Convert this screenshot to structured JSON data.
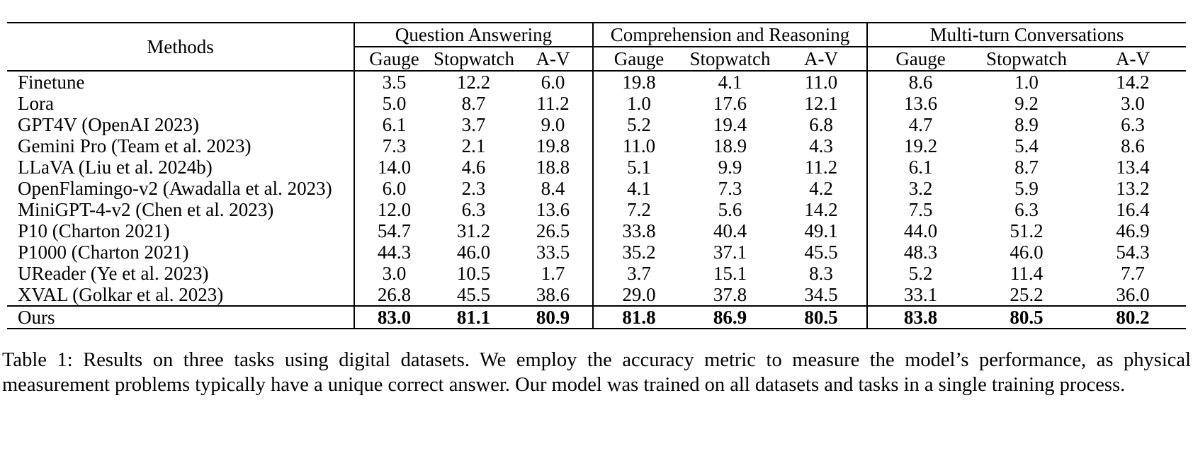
{
  "table": {
    "methods_header": "Methods",
    "groups": [
      {
        "label": "Question Answering"
      },
      {
        "label": "Comprehension and Reasoning"
      },
      {
        "label": "Multi-turn Conversations"
      }
    ],
    "subheaders": [
      "Gauge",
      "Stopwatch",
      "A-V"
    ],
    "rows": [
      {
        "method": "Finetune",
        "values": [
          "3.5",
          "12.2",
          "6.0",
          "19.8",
          "4.1",
          "11.0",
          "8.6",
          "1.0",
          "14.2"
        ],
        "bold_values": false
      },
      {
        "method": "Lora",
        "values": [
          "5.0",
          "8.7",
          "11.2",
          "1.0",
          "17.6",
          "12.1",
          "13.6",
          "9.2",
          "3.0"
        ],
        "bold_values": false
      },
      {
        "method": "GPT4V (OpenAI 2023)",
        "values": [
          "6.1",
          "3.7",
          "9.0",
          "5.2",
          "19.4",
          "6.8",
          "4.7",
          "8.9",
          "6.3"
        ],
        "bold_values": false
      },
      {
        "method": "Gemini Pro (Team et al. 2023)",
        "values": [
          "7.3",
          "2.1",
          "19.8",
          "11.0",
          "18.9",
          "4.3",
          "19.2",
          "5.4",
          "8.6"
        ],
        "bold_values": false
      },
      {
        "method": "LLaVA (Liu et al. 2024b)",
        "values": [
          "14.0",
          "4.6",
          "18.8",
          "5.1",
          "9.9",
          "11.2",
          "6.1",
          "8.7",
          "13.4"
        ],
        "bold_values": false
      },
      {
        "method": "OpenFlamingo-v2 (Awadalla et al. 2023)",
        "values": [
          "6.0",
          "2.3",
          "8.4",
          "4.1",
          "7.3",
          "4.2",
          "3.2",
          "5.9",
          "13.2"
        ],
        "bold_values": false
      },
      {
        "method": "MiniGPT-4-v2 (Chen et al. 2023)",
        "values": [
          "12.0",
          "6.3",
          "13.6",
          "7.2",
          "5.6",
          "14.2",
          "7.5",
          "6.3",
          "16.4"
        ],
        "bold_values": false
      },
      {
        "method": "P10 (Charton 2021)",
        "values": [
          "54.7",
          "31.2",
          "26.5",
          "33.8",
          "40.4",
          "49.1",
          "44.0",
          "51.2",
          "46.9"
        ],
        "bold_values": false
      },
      {
        "method": "P1000 (Charton 2021)",
        "values": [
          "44.3",
          "46.0",
          "33.5",
          "35.2",
          "37.1",
          "45.5",
          "48.3",
          "46.0",
          "54.3"
        ],
        "bold_values": false
      },
      {
        "method": "UReader (Ye et al. 2023)",
        "values": [
          "3.0",
          "10.5",
          "1.7",
          "3.7",
          "15.1",
          "8.3",
          "5.2",
          "11.4",
          "7.7"
        ],
        "bold_values": false
      },
      {
        "method": "XVAL (Golkar et al. 2023)",
        "values": [
          "26.8",
          "45.5",
          "38.6",
          "29.0",
          "37.8",
          "34.5",
          "33.1",
          "25.2",
          "36.0"
        ],
        "bold_values": false
      },
      {
        "method": "Ours",
        "values": [
          "83.0",
          "81.1",
          "80.9",
          "81.8",
          "86.9",
          "80.5",
          "83.8",
          "80.5",
          "80.2"
        ],
        "bold_values": true
      }
    ]
  },
  "caption": "Table 1: Results on three tasks using digital datasets. We employ the accuracy metric to measure the model’s performance, as physical measurement problems typically have a unique correct answer. Our model was trained on all datasets and tasks in a single training process."
}
